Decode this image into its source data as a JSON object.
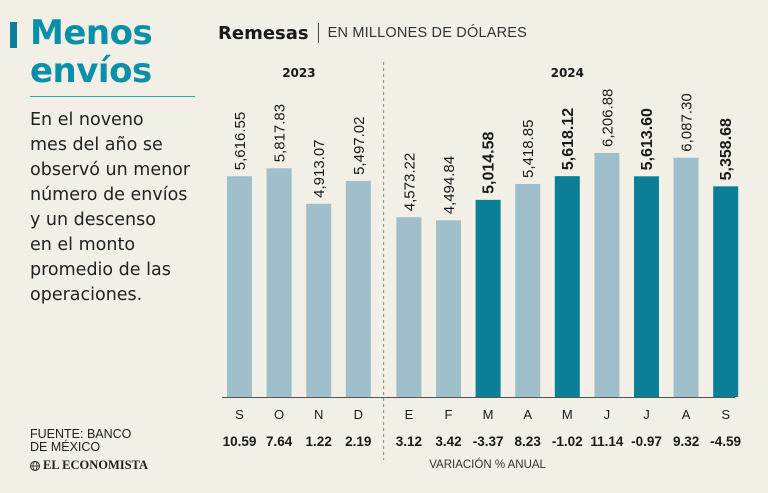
{
  "sidebar": {
    "title": "Menos\nenvíos",
    "description": "En el noveno\nmes del año se\nobservó un menor\nnúmero de envíos\ny un descenso\nen el monto\npromedio de las\noperaciones.",
    "source": "FUENTE: BANCO\nDE MÉXICO",
    "brand": "EL ECONOMISTA"
  },
  "colors": {
    "background": "#f1efe6",
    "bar_light": "#9fc0cb",
    "bar_highlight": "#0a7f95",
    "accent": "#0a8fa8"
  },
  "chart_data": {
    "type": "bar",
    "title": "Remesas",
    "subtitle": "EN MILLONES DE DÓLARES",
    "years": [
      {
        "label": "2023",
        "from": 0,
        "to": 3
      },
      {
        "label": "2024",
        "from": 4,
        "to": 12
      }
    ],
    "categories": [
      "S",
      "O",
      "N",
      "D",
      "E",
      "F",
      "M",
      "A",
      "M",
      "J",
      "J",
      "A",
      "S"
    ],
    "values": [
      5616.55,
      5817.83,
      4913.07,
      5497.02,
      4573.22,
      4494.84,
      5014.58,
      5418.85,
      5618.12,
      6206.88,
      5613.6,
      6087.3,
      5358.68
    ],
    "value_labels": [
      "5,616.55",
      "5,817.83",
      "4,913.07",
      "5,497.02",
      "4,573.22",
      "4,494.84",
      "5,014.58",
      "5,418.85",
      "5,618.12",
      "6,206.88",
      "5,613.60",
      "6,087.30",
      "5,358.68"
    ],
    "highlighted": [
      false,
      false,
      false,
      false,
      false,
      false,
      true,
      false,
      true,
      false,
      true,
      false,
      true
    ],
    "variation_label": "VARIACIÓN % ANUAL",
    "variation": [
      "10.59",
      "7.64",
      "1.22",
      "2.19",
      "3.12",
      "3.42",
      "-3.37",
      "8.23",
      "-1.02",
      "11.14",
      "-0.97",
      "9.32",
      "-4.59"
    ],
    "ylim": [
      0,
      6500
    ]
  }
}
